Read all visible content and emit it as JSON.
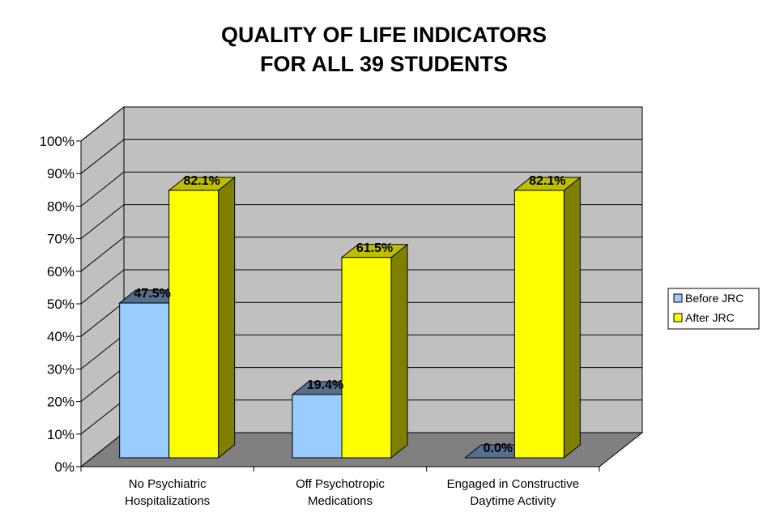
{
  "chart_data": {
    "type": "bar",
    "title_lines": [
      "QUALITY OF LIFE INDICATORS",
      "FOR ALL 39 STUDENTS"
    ],
    "categories": [
      [
        "No Psychiatric",
        "Hospitalizations"
      ],
      [
        "Off Psychotropic",
        "Medications"
      ],
      [
        "Engaged in Constructive",
        "Daytime Activity"
      ]
    ],
    "series": [
      {
        "name": "Before JRC",
        "values": [
          47.5,
          19.4,
          0.0
        ],
        "color": "#99ccff"
      },
      {
        "name": "After JRC",
        "values": [
          82.1,
          61.5,
          82.1
        ],
        "color": "#ffff00"
      }
    ],
    "value_labels": [
      [
        "47.5%",
        "19.4%",
        "0.0%"
      ],
      [
        "82.1%",
        "61.5%",
        "82.1%"
      ]
    ],
    "y_ticks": [
      "0%",
      "10%",
      "20%",
      "30%",
      "40%",
      "50%",
      "60%",
      "70%",
      "80%",
      "90%",
      "100%"
    ],
    "ylim": [
      0,
      100
    ],
    "grid": true,
    "legend_position": "right",
    "three_d": true
  }
}
